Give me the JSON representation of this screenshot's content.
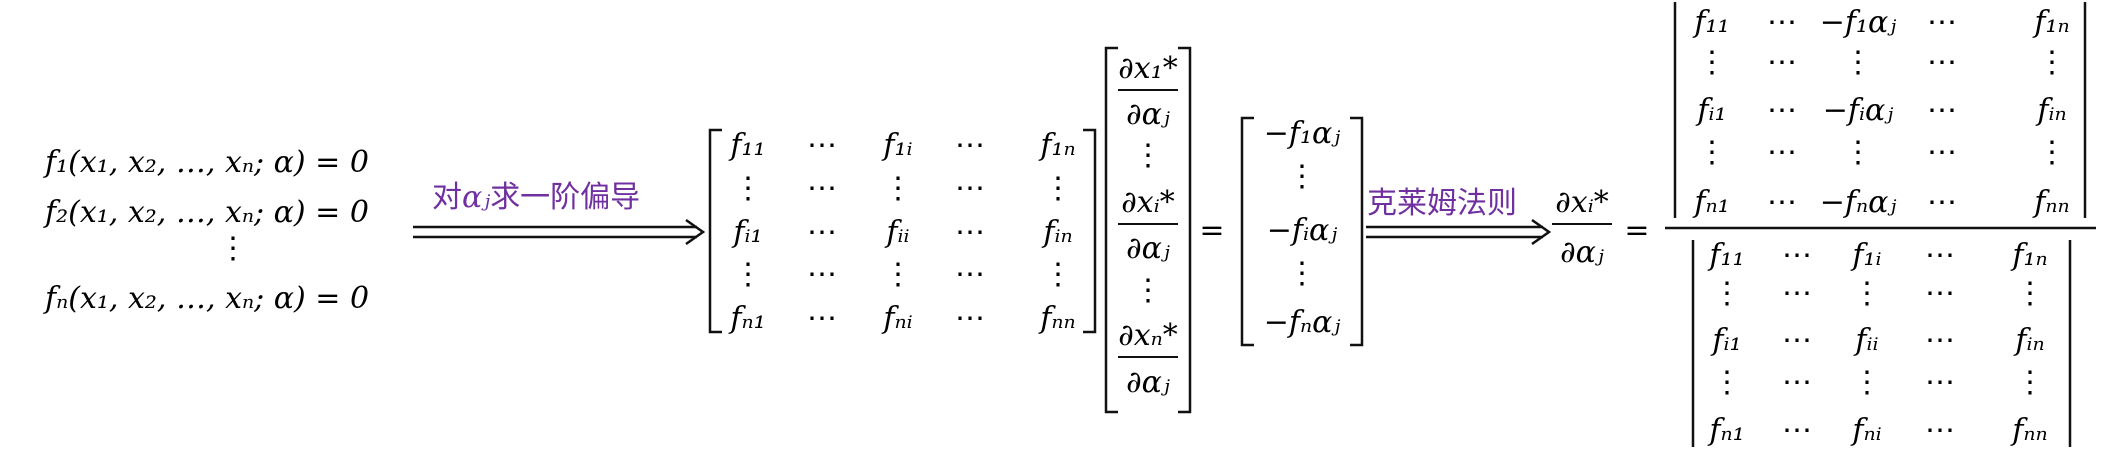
{
  "equations": [
    "f₁(x₁, x₂, …, xₙ; α) = 0",
    "f₂(x₁, x₂, …, xₙ; α) = 0",
    "⋮",
    "fₙ(x₁, x₂, …, xₙ; α) = 0"
  ],
  "arrow1_label": {
    "pre": "对",
    "sym": "αⱼ",
    "post": "求一阶偏导"
  },
  "arrow2_label": "克莱姆法则",
  "label_color": "#7030a0",
  "jacobian": [
    [
      "f₁₁",
      "⋯",
      "f₁ᵢ",
      "⋯",
      "f₁ₙ"
    ],
    [
      "⋮",
      "⋯",
      "⋮",
      "⋯",
      "⋮"
    ],
    [
      "fᵢ₁",
      "⋯",
      "fᵢᵢ",
      "⋯",
      "fᵢₙ"
    ],
    [
      "⋮",
      "⋯",
      "⋮",
      "⋯",
      "⋮"
    ],
    [
      "fₙ₁",
      "⋯",
      "fₙᵢ",
      "⋯",
      "fₙₙ"
    ]
  ],
  "unknown_vector": {
    "numerators": [
      "∂x₁*",
      "∂xᵢ*",
      "∂xₙ*"
    ],
    "denominator": "∂αⱼ",
    "dots": "⋮"
  },
  "equals": "=",
  "rhs_vector": [
    "−f₁αⱼ",
    "⋮",
    "−fᵢαⱼ",
    "⋮",
    "−fₙαⱼ"
  ],
  "result": {
    "numerator": "∂xᵢ*",
    "denominator": "∂αⱼ"
  },
  "num_det": [
    [
      "f₁₁",
      "⋯",
      "−f₁αⱼ",
      "⋯",
      "f₁ₙ"
    ],
    [
      "⋮",
      "⋯",
      "⋮",
      "⋯",
      "⋮"
    ],
    [
      "fᵢ₁",
      "⋯",
      "−fᵢαⱼ",
      "⋯",
      "fᵢₙ"
    ],
    [
      "⋮",
      "⋯",
      "⋮",
      "⋯",
      "⋮"
    ],
    [
      "fₙ₁",
      "⋯",
      "−fₙαⱼ",
      "⋯",
      "fₙₙ"
    ]
  ],
  "den_det": [
    [
      "f₁₁",
      "⋯",
      "f₁ᵢ",
      "⋯",
      "f₁ₙ"
    ],
    [
      "⋮",
      "⋯",
      "⋮",
      "⋯",
      "⋮"
    ],
    [
      "fᵢ₁",
      "⋯",
      "fᵢᵢ",
      "⋯",
      "fᵢₙ"
    ],
    [
      "⋮",
      "⋯",
      "⋮",
      "⋯",
      "⋮"
    ],
    [
      "fₙ₁",
      "⋯",
      "fₙᵢ",
      "⋯",
      "fₙₙ"
    ]
  ]
}
